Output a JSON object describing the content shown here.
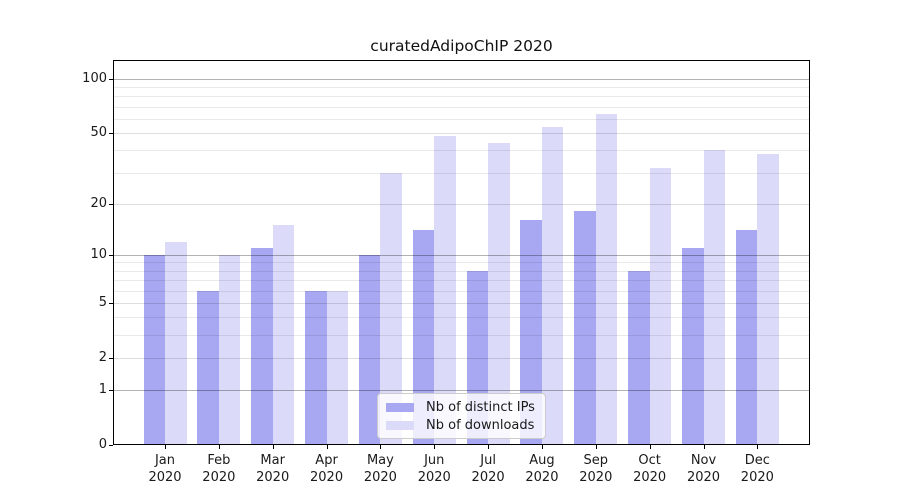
{
  "chart_data": {
    "type": "bar",
    "title": "curatedAdipoChIP 2020",
    "categories": [
      "Jan",
      "Feb",
      "Mar",
      "Apr",
      "May",
      "Jun",
      "Jul",
      "Aug",
      "Sep",
      "Oct",
      "Nov",
      "Dec"
    ],
    "year_label": "2020",
    "series": [
      {
        "name": "Nb of distinct IPs",
        "color": "#a7a7f2",
        "values": [
          10,
          6,
          11,
          6,
          10,
          14,
          8,
          16,
          18,
          8,
          11,
          14
        ]
      },
      {
        "name": "Nb of downloads",
        "color": "#dbdbf9",
        "values": [
          12,
          10,
          15,
          6,
          30,
          48,
          44,
          54,
          64,
          32,
          40,
          38
        ]
      }
    ],
    "y_axis": {
      "scale": "log10(value+1)",
      "ticks": [
        0,
        1,
        2,
        5,
        10,
        20,
        50,
        100
      ],
      "decade_gridlines": [
        1,
        10,
        100
      ],
      "minor_gridlines": [
        3,
        4,
        6,
        7,
        8,
        9,
        30,
        40,
        60,
        70,
        80,
        90
      ],
      "range": [
        0,
        127
      ]
    },
    "legend": {
      "position": "lower center"
    },
    "grid": true,
    "colors": {
      "grid_decade": "rgba(0,0,0,0.30)",
      "grid_labeled": "rgba(0,0,0,0.13)",
      "grid_minor": "rgba(0,0,0,0.085)",
      "axis": "#000000",
      "background": "#ffffff"
    }
  }
}
